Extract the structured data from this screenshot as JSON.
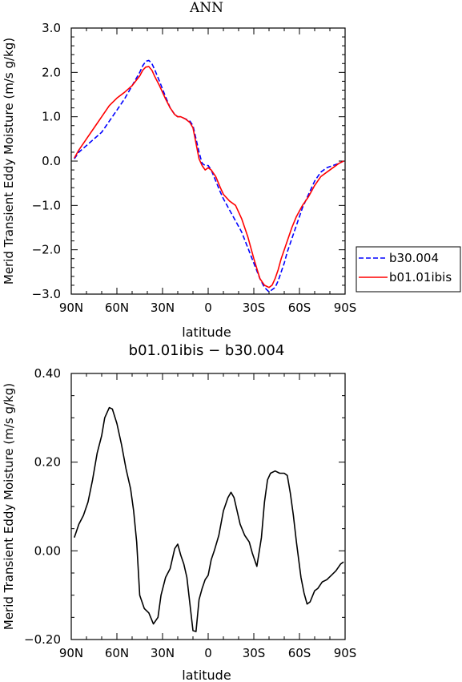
{
  "chart_data": [
    {
      "type": "line",
      "title": "ANN",
      "xlabel": "latitude",
      "ylabel": "Merid Transient Eddy Moisture (m/s g/kg)",
      "xlim": [
        90,
        -90
      ],
      "ylim": [
        -3.0,
        3.0
      ],
      "x_ticks": [
        90,
        60,
        30,
        0,
        -30,
        -60,
        -90
      ],
      "x_tick_labels": [
        "90N",
        "60N",
        "30N",
        "0",
        "30S",
        "60S",
        "90S"
      ],
      "y_ticks": [
        -3.0,
        -2.0,
        -1.0,
        0.0,
        1.0,
        2.0,
        3.0
      ],
      "y_tick_labels": [
        "−3.0",
        "−2.0",
        "−1.0",
        "0.0",
        "1.0",
        "2.0",
        "3.0"
      ],
      "legend_position": "outside-right",
      "series": [
        {
          "name": "b30.004",
          "color": "#0000ff",
          "dash": "dashed",
          "x": [
            88,
            85,
            80,
            75,
            70,
            65,
            60,
            55,
            50,
            45,
            43,
            41,
            39,
            37,
            35,
            32,
            28,
            25,
            22,
            20,
            18,
            15,
            12,
            10,
            8,
            6,
            4,
            2,
            0,
            -2,
            -5,
            -8,
            -10,
            -14,
            -18,
            -22,
            -26,
            -30,
            -34,
            -37,
            -40,
            -42,
            -44,
            -46,
            -48,
            -50,
            -52,
            -55,
            -58,
            -62,
            -66,
            -70,
            -74,
            -78,
            -82,
            -86,
            -89
          ],
          "y": [
            0.05,
            0.2,
            0.35,
            0.5,
            0.65,
            0.9,
            1.15,
            1.4,
            1.7,
            2.0,
            2.15,
            2.25,
            2.27,
            2.2,
            2.05,
            1.8,
            1.45,
            1.2,
            1.05,
            1.0,
            1.0,
            0.95,
            0.9,
            0.8,
            0.5,
            0.2,
            -0.05,
            -0.1,
            -0.1,
            -0.2,
            -0.45,
            -0.7,
            -0.85,
            -1.1,
            -1.35,
            -1.6,
            -1.95,
            -2.3,
            -2.65,
            -2.85,
            -2.95,
            -2.9,
            -2.85,
            -2.7,
            -2.5,
            -2.3,
            -2.05,
            -1.75,
            -1.45,
            -1.05,
            -0.75,
            -0.45,
            -0.25,
            -0.15,
            -0.1,
            -0.05,
            0.0
          ]
        },
        {
          "name": "b01.01ibis",
          "color": "#ff0000",
          "dash": "solid",
          "x": [
            88,
            85,
            80,
            75,
            70,
            65,
            60,
            55,
            50,
            45,
            43,
            41,
            39,
            37,
            35,
            32,
            28,
            25,
            22,
            20,
            18,
            15,
            12,
            10,
            8,
            6,
            4,
            2,
            0,
            -2,
            -5,
            -8,
            -10,
            -14,
            -18,
            -22,
            -26,
            -30,
            -34,
            -37,
            -40,
            -42,
            -44,
            -46,
            -48,
            -50,
            -52,
            -55,
            -58,
            -62,
            -66,
            -70,
            -74,
            -78,
            -82,
            -86,
            -89
          ],
          "y": [
            0.07,
            0.25,
            0.5,
            0.75,
            1.0,
            1.25,
            1.42,
            1.55,
            1.7,
            1.92,
            2.05,
            2.12,
            2.13,
            2.05,
            1.9,
            1.7,
            1.4,
            1.2,
            1.05,
            1.0,
            1.0,
            0.95,
            0.87,
            0.75,
            0.4,
            0.05,
            -0.1,
            -0.2,
            -0.15,
            -0.2,
            -0.35,
            -0.6,
            -0.75,
            -0.9,
            -1.0,
            -1.3,
            -1.7,
            -2.2,
            -2.65,
            -2.8,
            -2.85,
            -2.8,
            -2.65,
            -2.45,
            -2.2,
            -2.0,
            -1.8,
            -1.5,
            -1.25,
            -1.0,
            -0.8,
            -0.55,
            -0.35,
            -0.25,
            -0.15,
            -0.05,
            0.0
          ]
        }
      ]
    },
    {
      "type": "line",
      "title": "b01.01ibis − b30.004",
      "xlabel": "latitude",
      "ylabel": "Merid Transient Eddy Moisture (m/s g/kg)",
      "xlim": [
        90,
        -90
      ],
      "ylim": [
        -0.2,
        0.4
      ],
      "x_ticks": [
        90,
        60,
        30,
        0,
        -30,
        -60,
        -90
      ],
      "x_tick_labels": [
        "90N",
        "60N",
        "30N",
        "0",
        "30S",
        "60S",
        "90S"
      ],
      "y_ticks": [
        -0.2,
        0.0,
        0.2,
        0.4
      ],
      "y_tick_labels": [
        "−0.20",
        "0.00",
        "0.20",
        "0.40"
      ],
      "series": [
        {
          "color": "#000000",
          "dash": "solid",
          "x": [
            88,
            85,
            82,
            79,
            76,
            73,
            70,
            68,
            65,
            63,
            60,
            57,
            54,
            51,
            49,
            47,
            45,
            42,
            39,
            36,
            33,
            31,
            28,
            25,
            22,
            20,
            18,
            16,
            14,
            12,
            10,
            8,
            6,
            4,
            2,
            0,
            -2,
            -4,
            -7,
            -10,
            -13,
            -15,
            -17,
            -19,
            -21,
            -24,
            -27,
            -29,
            -32,
            -35,
            -37,
            -39,
            -41,
            -44,
            -47,
            -50,
            -52,
            -54,
            -56,
            -58,
            -61,
            -63,
            -65,
            -67,
            -70,
            -72,
            -75,
            -78,
            -81,
            -84,
            -87,
            -89
          ],
          "y": [
            0.03,
            0.06,
            0.08,
            0.11,
            0.16,
            0.22,
            0.26,
            0.3,
            0.323,
            0.32,
            0.287,
            0.24,
            0.185,
            0.14,
            0.09,
            0.02,
            -0.1,
            -0.13,
            -0.14,
            -0.165,
            -0.15,
            -0.1,
            -0.06,
            -0.04,
            0.005,
            0.015,
            -0.01,
            -0.03,
            -0.06,
            -0.12,
            -0.18,
            -0.182,
            -0.11,
            -0.085,
            -0.065,
            -0.055,
            -0.02,
            0.0,
            0.035,
            0.09,
            0.12,
            0.132,
            0.12,
            0.09,
            0.06,
            0.035,
            0.02,
            -0.005,
            -0.035,
            0.03,
            0.11,
            0.16,
            0.175,
            0.18,
            0.175,
            0.175,
            0.17,
            0.13,
            0.08,
            0.02,
            -0.06,
            -0.095,
            -0.12,
            -0.115,
            -0.09,
            -0.085,
            -0.07,
            -0.065,
            -0.055,
            -0.045,
            -0.03,
            -0.025
          ]
        }
      ]
    }
  ]
}
